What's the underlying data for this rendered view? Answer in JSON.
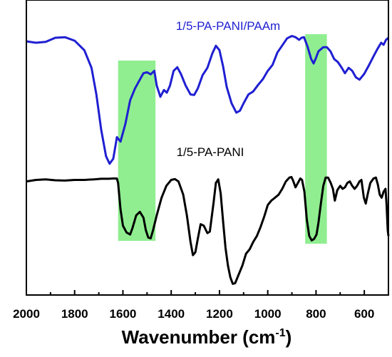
{
  "chart_data": {
    "type": "line",
    "title": "",
    "xlabel": "Wavenumber (cm",
    "xlabel_sup": "-1",
    "xlabel_close": ")",
    "ylabel": "",
    "x_reversed": true,
    "xlim": [
      2000,
      500
    ],
    "x_ticks": [
      2000,
      1800,
      1600,
      1400,
      1200,
      1000,
      800,
      600
    ],
    "y_ticks_shown": false,
    "grid": false,
    "highlight_bands": [
      {
        "x_from": 1620,
        "x_to": 1465,
        "color": "#90ee90"
      },
      {
        "x_from": 845,
        "x_to": 755,
        "color": "#90ee90"
      }
    ],
    "series": [
      {
        "name": "1/5-PA-PANI/PAAm",
        "color": "#1f1fd2",
        "points": [
          [
            2000,
            0.86
          ],
          [
            1960,
            0.855
          ],
          [
            1920,
            0.858
          ],
          [
            1880,
            0.872
          ],
          [
            1840,
            0.874
          ],
          [
            1800,
            0.862
          ],
          [
            1760,
            0.83
          ],
          [
            1730,
            0.77
          ],
          [
            1710,
            0.68
          ],
          [
            1690,
            0.56
          ],
          [
            1670,
            0.47
          ],
          [
            1655,
            0.445
          ],
          [
            1640,
            0.462
          ],
          [
            1630,
            0.51
          ],
          [
            1625,
            0.535
          ],
          [
            1610,
            0.52
          ],
          [
            1590,
            0.58
          ],
          [
            1570,
            0.66
          ],
          [
            1550,
            0.7
          ],
          [
            1530,
            0.73
          ],
          [
            1515,
            0.752
          ],
          [
            1500,
            0.755
          ],
          [
            1485,
            0.748
          ],
          [
            1470,
            0.76
          ],
          [
            1460,
            0.71
          ],
          [
            1445,
            0.672
          ],
          [
            1430,
            0.695
          ],
          [
            1418,
            0.686
          ],
          [
            1405,
            0.71
          ],
          [
            1390,
            0.76
          ],
          [
            1375,
            0.772
          ],
          [
            1360,
            0.75
          ],
          [
            1340,
            0.71
          ],
          [
            1320,
            0.68
          ],
          [
            1305,
            0.678
          ],
          [
            1290,
            0.7
          ],
          [
            1270,
            0.745
          ],
          [
            1250,
            0.77
          ],
          [
            1230,
            0.818
          ],
          [
            1215,
            0.845
          ],
          [
            1200,
            0.83
          ],
          [
            1185,
            0.775
          ],
          [
            1170,
            0.705
          ],
          [
            1150,
            0.65
          ],
          [
            1130,
            0.618
          ],
          [
            1115,
            0.625
          ],
          [
            1100,
            0.65
          ],
          [
            1080,
            0.68
          ],
          [
            1060,
            0.69
          ],
          [
            1040,
            0.712
          ],
          [
            1020,
            0.732
          ],
          [
            1000,
            0.76
          ],
          [
            980,
            0.78
          ],
          [
            960,
            0.822
          ],
          [
            940,
            0.846
          ],
          [
            920,
            0.87
          ],
          [
            900,
            0.878
          ],
          [
            885,
            0.874
          ],
          [
            870,
            0.865
          ],
          [
            860,
            0.872
          ],
          [
            850,
            0.874
          ],
          [
            835,
            0.842
          ],
          [
            820,
            0.8
          ],
          [
            810,
            0.785
          ],
          [
            800,
            0.804
          ],
          [
            790,
            0.826
          ],
          [
            770,
            0.84
          ],
          [
            755,
            0.84
          ],
          [
            740,
            0.826
          ],
          [
            725,
            0.8
          ],
          [
            710,
            0.79
          ],
          [
            695,
            0.772
          ],
          [
            680,
            0.752
          ],
          [
            665,
            0.77
          ],
          [
            650,
            0.76
          ],
          [
            635,
            0.738
          ],
          [
            620,
            0.73
          ],
          [
            600,
            0.75
          ],
          [
            580,
            0.78
          ],
          [
            560,
            0.812
          ],
          [
            545,
            0.835
          ],
          [
            530,
            0.855
          ],
          [
            520,
            0.848
          ],
          [
            510,
            0.865
          ],
          [
            500,
            0.872
          ]
        ]
      },
      {
        "name": "1/5-PA-PANI",
        "color": "#000000",
        "points": [
          [
            2000,
            0.385
          ],
          [
            1960,
            0.39
          ],
          [
            1920,
            0.392
          ],
          [
            1880,
            0.389
          ],
          [
            1840,
            0.388
          ],
          [
            1800,
            0.39
          ],
          [
            1760,
            0.39
          ],
          [
            1720,
            0.392
          ],
          [
            1690,
            0.394
          ],
          [
            1660,
            0.394
          ],
          [
            1640,
            0.395
          ],
          [
            1625,
            0.395
          ],
          [
            1620,
            0.38
          ],
          [
            1610,
            0.29
          ],
          [
            1600,
            0.235
          ],
          [
            1585,
            0.212
          ],
          [
            1570,
            0.205
          ],
          [
            1560,
            0.228
          ],
          [
            1545,
            0.27
          ],
          [
            1530,
            0.282
          ],
          [
            1515,
            0.262
          ],
          [
            1505,
            0.22
          ],
          [
            1495,
            0.195
          ],
          [
            1485,
            0.192
          ],
          [
            1475,
            0.22
          ],
          [
            1460,
            0.27
          ],
          [
            1440,
            0.33
          ],
          [
            1420,
            0.37
          ],
          [
            1400,
            0.39
          ],
          [
            1385,
            0.393
          ],
          [
            1370,
            0.385
          ],
          [
            1350,
            0.34
          ],
          [
            1335,
            0.27
          ],
          [
            1320,
            0.18
          ],
          [
            1310,
            0.135
          ],
          [
            1300,
            0.145
          ],
          [
            1290,
            0.19
          ],
          [
            1278,
            0.24
          ],
          [
            1265,
            0.235
          ],
          [
            1250,
            0.21
          ],
          [
            1240,
            0.215
          ],
          [
            1225,
            0.31
          ],
          [
            1215,
            0.38
          ],
          [
            1205,
            0.392
          ],
          [
            1195,
            0.345
          ],
          [
            1185,
            0.25
          ],
          [
            1175,
            0.16
          ],
          [
            1165,
            0.1
          ],
          [
            1155,
            0.06
          ],
          [
            1145,
            0.038
          ],
          [
            1135,
            0.04
          ],
          [
            1120,
            0.07
          ],
          [
            1105,
            0.1
          ],
          [
            1090,
            0.14
          ],
          [
            1075,
            0.155
          ],
          [
            1060,
            0.18
          ],
          [
            1045,
            0.2
          ],
          [
            1030,
            0.23
          ],
          [
            1015,
            0.265
          ],
          [
            1000,
            0.305
          ],
          [
            985,
            0.32
          ],
          [
            970,
            0.33
          ],
          [
            955,
            0.34
          ],
          [
            940,
            0.36
          ],
          [
            925,
            0.385
          ],
          [
            910,
            0.398
          ],
          [
            902,
            0.4
          ],
          [
            895,
            0.388
          ],
          [
            885,
            0.365
          ],
          [
            875,
            0.38
          ],
          [
            865,
            0.395
          ],
          [
            858,
            0.39
          ],
          [
            848,
            0.35
          ],
          [
            838,
            0.255
          ],
          [
            828,
            0.2
          ],
          [
            818,
            0.185
          ],
          [
            808,
            0.19
          ],
          [
            798,
            0.205
          ],
          [
            790,
            0.245
          ],
          [
            780,
            0.31
          ],
          [
            770,
            0.37
          ],
          [
            760,
            0.398
          ],
          [
            750,
            0.398
          ],
          [
            740,
            0.382
          ],
          [
            730,
            0.36
          ],
          [
            722,
            0.32
          ],
          [
            712,
            0.355
          ],
          [
            700,
            0.37
          ],
          [
            690,
            0.36
          ],
          [
            680,
            0.365
          ],
          [
            670,
            0.38
          ],
          [
            660,
            0.385
          ],
          [
            650,
            0.37
          ],
          [
            640,
            0.36
          ],
          [
            630,
            0.37
          ],
          [
            620,
            0.385
          ],
          [
            612,
            0.39
          ],
          [
            602,
            0.33
          ],
          [
            594,
            0.31
          ],
          [
            585,
            0.345
          ],
          [
            575,
            0.38
          ],
          [
            562,
            0.395
          ],
          [
            552,
            0.398
          ],
          [
            544,
            0.375
          ],
          [
            536,
            0.34
          ],
          [
            528,
            0.33
          ],
          [
            520,
            0.35
          ],
          [
            512,
            0.36
          ],
          [
            508,
            0.31
          ],
          [
            503,
            0.22
          ],
          [
            500,
            0.2
          ]
        ]
      }
    ]
  }
}
